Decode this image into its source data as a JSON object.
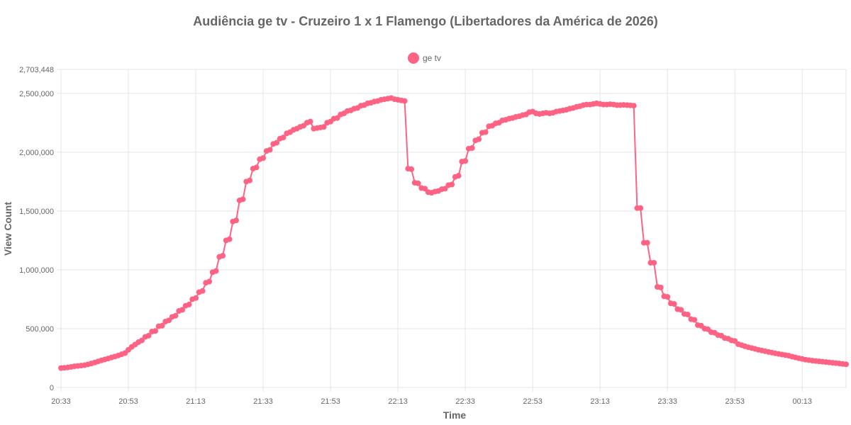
{
  "chart_data": {
    "type": "line",
    "title": "Audiência ge tv - Cruzeiro 1 x 1 Flamengo (Libertadores da América de 2026)",
    "xlabel": "Time",
    "ylabel": "View Count",
    "ylim": [
      0,
      2703448
    ],
    "y_ticks": [
      0,
      500000,
      1000000,
      1500000,
      2000000,
      2500000,
      2703448
    ],
    "y_tick_labels": [
      "0",
      "500,000",
      "1,000,000",
      "1,500,000",
      "2,000,000",
      "2,500,000",
      "2,703,448"
    ],
    "x_tick_labels": [
      "20:33",
      "20:53",
      "21:13",
      "21:33",
      "21:53",
      "22:13",
      "22:33",
      "22:53",
      "23:13",
      "23:33",
      "23:53",
      "00:13"
    ],
    "x_start": "20:33",
    "x_step_minutes": 1,
    "grid": true,
    "legend_position": "top",
    "color": "#ff6384",
    "series": [
      {
        "name": "ge tv",
        "values": [
          165000,
          167000,
          170000,
          175000,
          180000,
          183000,
          186000,
          190000,
          196000,
          204000,
          212000,
          221000,
          230000,
          238000,
          246000,
          255000,
          263000,
          272000,
          282000,
          292000,
          320000,
          345000,
          365000,
          385000,
          400000,
          430000,
          440000,
          475000,
          480000,
          520000,
          525000,
          560000,
          570000,
          600000,
          610000,
          650000,
          660000,
          695000,
          705000,
          750000,
          760000,
          810000,
          820000,
          890000,
          900000,
          980000,
          990000,
          1110000,
          1120000,
          1250000,
          1260000,
          1410000,
          1420000,
          1590000,
          1600000,
          1750000,
          1760000,
          1860000,
          1870000,
          1940000,
          1950000,
          2010000,
          2020000,
          2070000,
          2080000,
          2115000,
          2125000,
          2160000,
          2170000,
          2190000,
          2200000,
          2215000,
          2225000,
          2250000,
          2260000,
          2200000,
          2205000,
          2210000,
          2215000,
          2250000,
          2260000,
          2285000,
          2290000,
          2320000,
          2330000,
          2350000,
          2355000,
          2370000,
          2375000,
          2395000,
          2400000,
          2415000,
          2420000,
          2430000,
          2435000,
          2445000,
          2450000,
          2455000,
          2460000,
          2450000,
          2445000,
          2440000,
          2435000,
          1860000,
          1855000,
          1740000,
          1735000,
          1695000,
          1690000,
          1660000,
          1655000,
          1665000,
          1670000,
          1685000,
          1690000,
          1720000,
          1725000,
          1790000,
          1800000,
          1920000,
          1925000,
          2030000,
          2035000,
          2100000,
          2110000,
          2165000,
          2170000,
          2220000,
          2225000,
          2245000,
          2250000,
          2270000,
          2275000,
          2285000,
          2290000,
          2300000,
          2305000,
          2315000,
          2320000,
          2340000,
          2345000,
          2330000,
          2325000,
          2330000,
          2335000,
          2330000,
          2335000,
          2345000,
          2350000,
          2355000,
          2360000,
          2370000,
          2375000,
          2385000,
          2390000,
          2400000,
          2405000,
          2405000,
          2410000,
          2415000,
          2410000,
          2405000,
          2405000,
          2408000,
          2405000,
          2400000,
          2400000,
          2402000,
          2400000,
          2398000,
          2395000,
          1525000,
          1525000,
          1230000,
          1230000,
          1060000,
          1060000,
          855000,
          850000,
          775000,
          770000,
          715000,
          710000,
          665000,
          660000,
          625000,
          620000,
          580000,
          575000,
          530000,
          525000,
          500000,
          495000,
          470000,
          465000,
          445000,
          440000,
          420000,
          415000,
          400000,
          395000,
          368000,
          360000,
          350000,
          342000,
          335000,
          328000,
          320000,
          314000,
          308000,
          302000,
          296000,
          290000,
          285000,
          280000,
          275000,
          270000,
          262000,
          255000,
          248000,
          242000,
          236000,
          232000,
          228000,
          225000,
          222000,
          219000,
          216000,
          213000,
          210000,
          207000,
          204000,
          200000,
          197000
        ]
      }
    ]
  }
}
